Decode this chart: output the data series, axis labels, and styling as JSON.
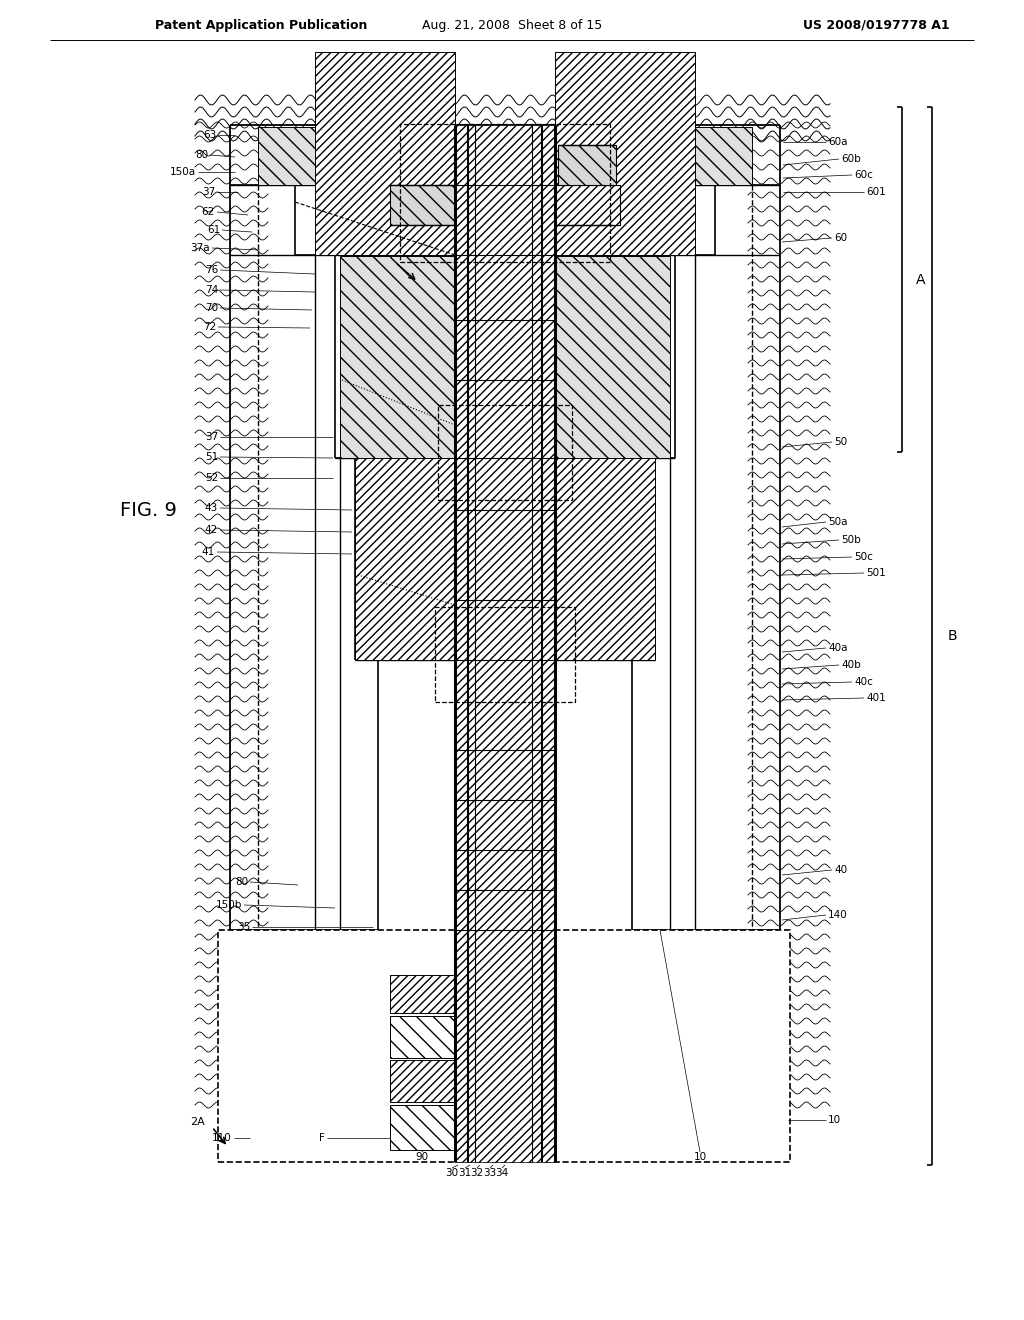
{
  "header_left": "Patent Application Publication",
  "header_center": "Aug. 21, 2008  Sheet 8 of 15",
  "header_right": "US 2008/0197778 A1",
  "fig_label": "FIG. 9",
  "bg_color": "#ffffff"
}
